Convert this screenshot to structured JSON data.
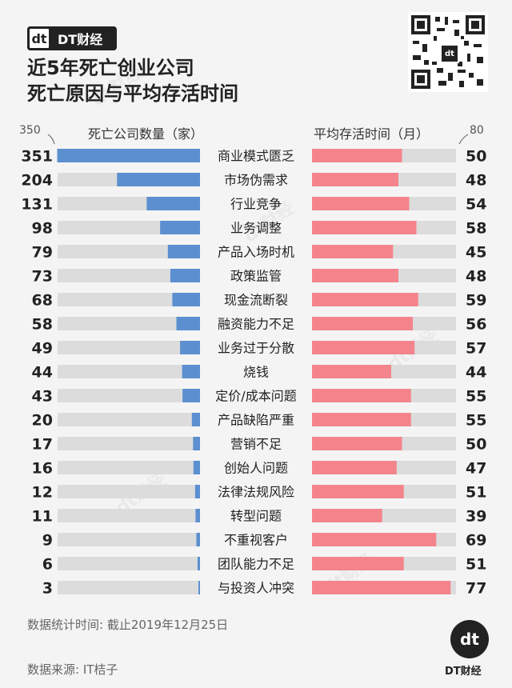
{
  "brand": {
    "mark": "dt",
    "name": "DT财经"
  },
  "title_line1": "近5年死亡创业公司",
  "title_line2": "死亡原因与平均存活时间",
  "qr_mark": "dt",
  "chart_data": {
    "type": "bar",
    "left_header": "死亡公司数量（家）",
    "right_header": "平均存活时间（月）",
    "left_scale_max": 350,
    "right_scale_max": 80,
    "left_color": "#5b8fd0",
    "right_color": "#f4848c",
    "track_color": "#dcdcdc",
    "categories": [
      "商业模式匮乏",
      "市场伪需求",
      "行业竞争",
      "业务调整",
      "产品入场时机",
      "政策监管",
      "现金流断裂",
      "融资能力不足",
      "业务过于分散",
      "烧钱",
      "定价/成本问题",
      "产品缺陷严重",
      "营销不足",
      "创始人问题",
      "法律法规风险",
      "转型问题",
      "不重视客户",
      "团队能力不足",
      "与投资人冲突"
    ],
    "series": [
      {
        "name": "死亡公司数量（家）",
        "values": [
          351,
          204,
          131,
          98,
          79,
          73,
          68,
          58,
          49,
          44,
          43,
          20,
          17,
          16,
          12,
          11,
          9,
          6,
          3
        ]
      },
      {
        "name": "平均存活时间（月）",
        "values": [
          50,
          48,
          54,
          58,
          45,
          48,
          59,
          56,
          57,
          44,
          55,
          55,
          50,
          47,
          51,
          39,
          69,
          51,
          77
        ]
      }
    ]
  },
  "footer_time": "数据统计时间: 截止2019年12月25日",
  "footer_source": "数据来源: IT桔子",
  "logo_mark": "dt",
  "logo_text": "DT财经"
}
